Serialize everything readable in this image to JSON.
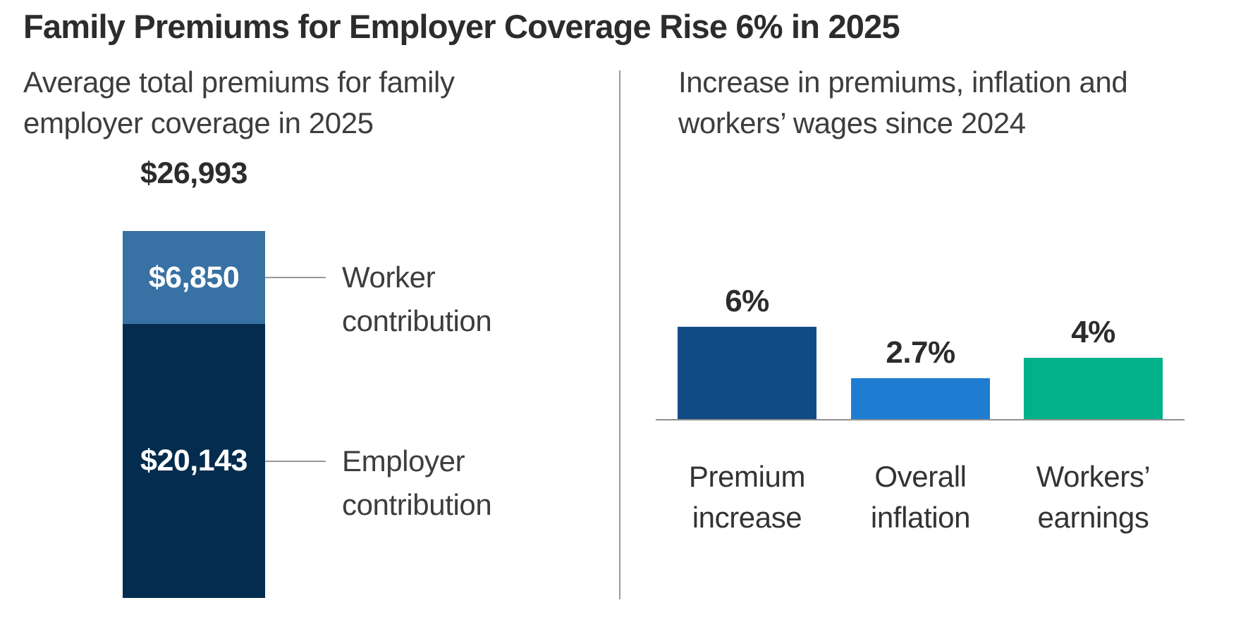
{
  "title": "Family Premiums for Employer Coverage Rise 6% in 2025",
  "colors": {
    "title_text": "#2c2c2c",
    "subtitle_text": "#3d3d3d",
    "divider_gray": "#9b9b9b",
    "axis_gray": "#8f8f8f",
    "connector_gray": "#999999",
    "value_text_on_bar": "#ffffff"
  },
  "chart_data": [
    {
      "type": "bar",
      "subtype": "stacked-single-column",
      "title": "Average total premiums for family employer coverage in 2025",
      "total": 26993,
      "total_label": "$26,993",
      "segments": [
        {
          "name": "Worker contribution",
          "value": 6850,
          "value_label": "$6,850",
          "color": "#3871A3"
        },
        {
          "name": "Employer contribution",
          "value": 20143,
          "value_label": "$20,143",
          "color": "#032C4E"
        }
      ],
      "legend_position": "right-of-bar-with-connector-lines",
      "grid": false
    },
    {
      "type": "bar",
      "title": "Increase in premiums, inflation and workers’ wages since 2024",
      "categories": [
        "Premium increase",
        "Overall inflation",
        "Workers’ earnings"
      ],
      "values": [
        6,
        2.7,
        4
      ],
      "value_labels": [
        "6%",
        "2.7%",
        "4%"
      ],
      "colors": [
        "#114B85",
        "#1F7DD1",
        "#00B189"
      ],
      "xlabel": "",
      "ylabel": "",
      "ylim": [
        0,
        7
      ],
      "grid": false,
      "baseline_axis": true,
      "legend_position": "none"
    }
  ]
}
